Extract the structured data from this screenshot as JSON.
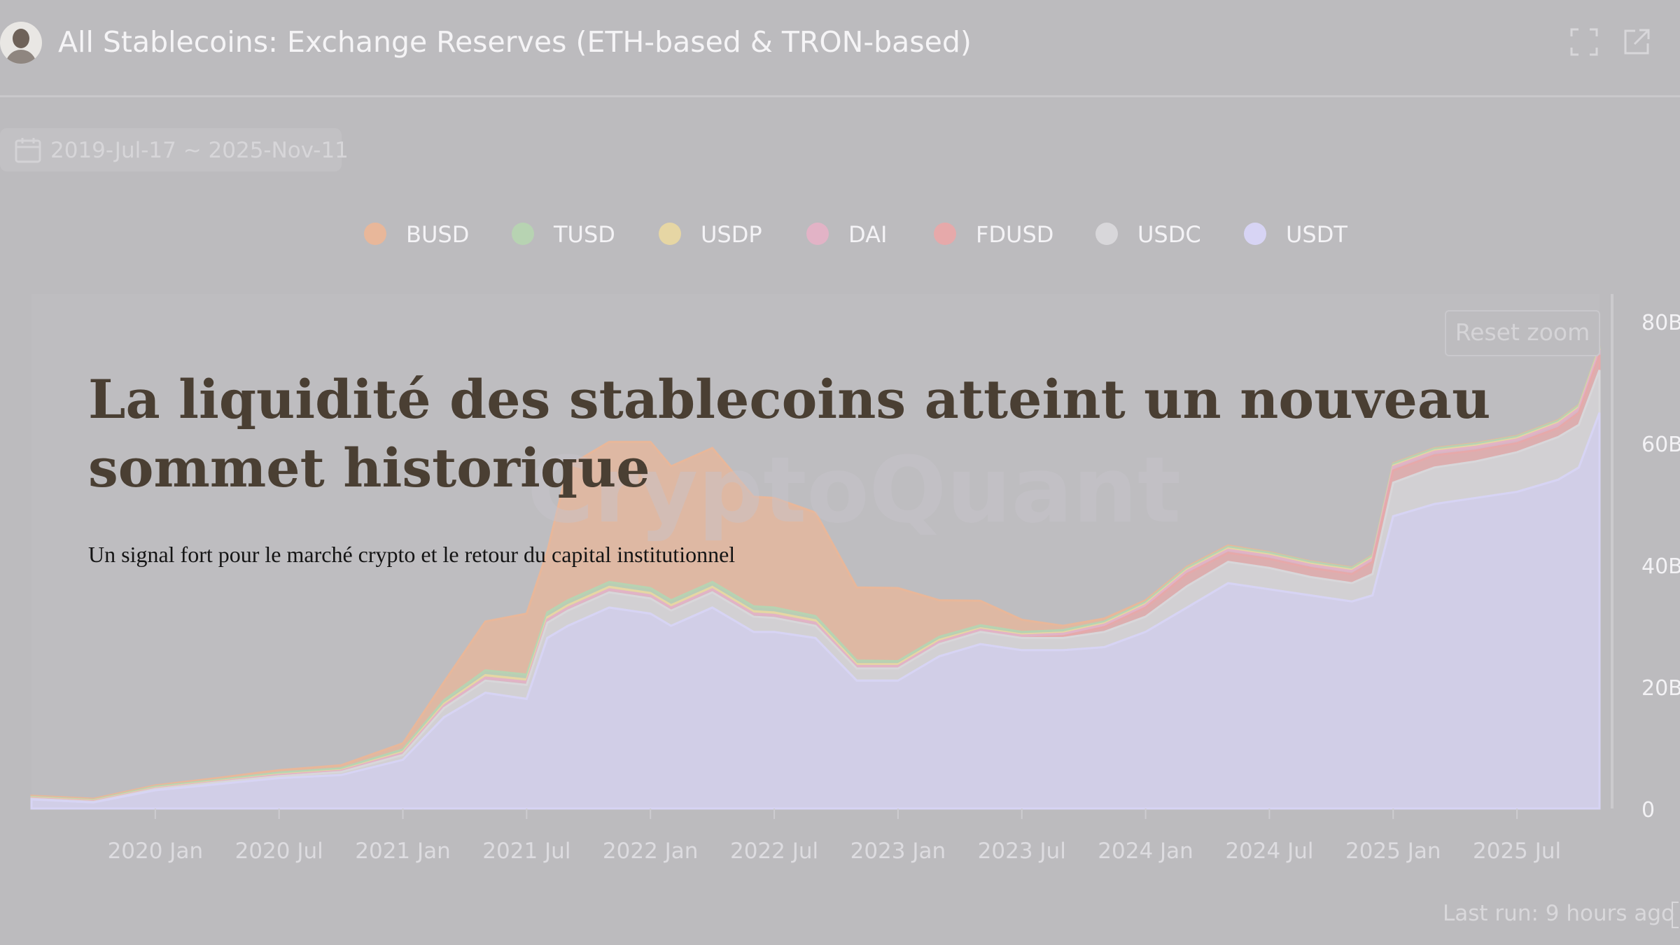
{
  "header": {
    "title": "All Stablecoins: Exchange Reserves (ETH-based & TRON-based)",
    "icons": [
      "avatar",
      "fullscreen-icon",
      "external-link-icon"
    ]
  },
  "date_range": {
    "label": "2019-Jul-17 ~ 2025-Nov-11",
    "icon": "calendar-icon"
  },
  "legend": [
    {
      "label": "BUSD",
      "color": "#e8b79a"
    },
    {
      "label": "TUSD",
      "color": "#b7d3b2"
    },
    {
      "label": "USDP",
      "color": "#e6d6a4"
    },
    {
      "label": "DAI",
      "color": "#e2b3c6"
    },
    {
      "label": "FDUSD",
      "color": "#e6a9aa"
    },
    {
      "label": "USDC",
      "color": "#d8d7da"
    },
    {
      "label": "USDT",
      "color": "#d7d4f4"
    }
  ],
  "reset_zoom": "Reset zoom",
  "watermark": "CryptoQuant",
  "overlay": {
    "headline": "La liquidité des stablecoins atteint un nouveau sommet historique",
    "subheadline": "Un signal fort pour le marché crypto et le retour du capital institutionnel"
  },
  "footer": {
    "last_run": "Last run: 9 hours ago"
  },
  "chart_data": {
    "type": "area",
    "stacked": true,
    "x_unit": "months since 2019-Jul",
    "x_range": [
      "2019-Jul-17",
      "2025-Nov-11"
    ],
    "x_ticks": [
      "2020 Jan",
      "2020 Jul",
      "2021 Jan",
      "2021 Jul",
      "2022 Jan",
      "2022 Jul",
      "2023 Jan",
      "2023 Jul",
      "2024 Jan",
      "2024 Jul",
      "2025 Jan",
      "2025 Jul"
    ],
    "y_ticks": [
      "0",
      "20B",
      "40B",
      "60B",
      "80B"
    ],
    "ylim": [
      0,
      80000000000
    ],
    "y_axis_position": "right",
    "legend_position": "top-center",
    "dates": [
      "2019-Jul",
      "2019-Oct",
      "2020-Jan",
      "2020-Apr",
      "2020-Jul",
      "2020-Oct",
      "2021-Jan",
      "2021-Mar",
      "2021-May",
      "2021-Jul",
      "2021-Aug",
      "2021-Sep",
      "2021-Nov",
      "2022-Jan",
      "2022-Feb",
      "2022-Apr",
      "2022-Jun",
      "2022-Jul",
      "2022-Sep",
      "2022-Nov",
      "2023-Jan",
      "2023-Mar",
      "2023-May",
      "2023-Jul",
      "2023-Sep",
      "2023-Nov",
      "2024-Jan",
      "2024-Mar",
      "2024-May",
      "2024-Jul",
      "2024-Sep",
      "2024-Nov",
      "2024-Dec",
      "2025-Jan",
      "2025-Mar",
      "2025-May",
      "2025-Jul",
      "2025-Sep",
      "2025-Oct",
      "2025-Nov"
    ],
    "x": [
      0,
      3,
      6,
      9,
      12,
      15,
      18,
      20,
      22,
      24,
      25,
      26,
      28,
      30,
      31,
      33,
      35,
      36,
      38,
      40,
      42,
      44,
      46,
      48,
      50,
      52,
      54,
      56,
      58,
      60,
      62,
      64,
      65,
      66,
      68,
      70,
      72,
      74,
      75,
      76
    ],
    "series": [
      {
        "name": "USDT",
        "values": [
          1.5,
          1.0,
          3.0,
          4.0,
          5.0,
          5.5,
          8.0,
          15.0,
          19.0,
          18.0,
          28.0,
          30.0,
          33.0,
          32.0,
          30.0,
          33.0,
          29.0,
          29.0,
          28.0,
          21.0,
          21.0,
          25.0,
          27.0,
          26.0,
          26.0,
          26.5,
          29.0,
          33.0,
          37.0,
          36.0,
          35.0,
          34.0,
          35.0,
          48.0,
          50.0,
          51.0,
          52.0,
          54.0,
          56.0,
          65.0
        ]
      },
      {
        "name": "USDC",
        "values": [
          0.1,
          0.1,
          0.2,
          0.3,
          0.3,
          0.5,
          0.8,
          1.5,
          2.0,
          2.3,
          2.5,
          2.5,
          2.5,
          2.5,
          2.5,
          2.5,
          2.5,
          2.3,
          2.0,
          2.0,
          2.0,
          2.0,
          2.0,
          2.0,
          2.0,
          2.5,
          2.5,
          3.5,
          3.5,
          3.5,
          3.0,
          3.0,
          3.5,
          5.5,
          6.0,
          6.0,
          6.5,
          7.0,
          7.0,
          7.0
        ]
      },
      {
        "name": "FDUSD",
        "values": [
          0,
          0,
          0,
          0,
          0,
          0,
          0,
          0,
          0,
          0,
          0,
          0,
          0,
          0,
          0,
          0,
          0,
          0,
          0,
          0,
          0,
          0,
          0,
          0,
          0.3,
          0.8,
          1.5,
          2.0,
          1.5,
          1.5,
          1.5,
          1.5,
          2.0,
          2.0,
          2.0,
          1.8,
          1.5,
          1.5,
          2.0,
          2.5
        ]
      },
      {
        "name": "DAI",
        "values": [
          0.1,
          0.1,
          0.1,
          0.1,
          0.2,
          0.2,
          0.3,
          0.4,
          0.5,
          0.5,
          0.5,
          0.5,
          0.5,
          0.5,
          0.5,
          0.5,
          0.5,
          0.5,
          0.5,
          0.4,
          0.4,
          0.4,
          0.4,
          0.4,
          0.4,
          0.4,
          0.4,
          0.5,
          0.5,
          0.5,
          0.5,
          0.5,
          0.5,
          0.6,
          0.6,
          0.6,
          0.6,
          0.7,
          0.7,
          0.8
        ]
      },
      {
        "name": "USDP",
        "values": [
          0.1,
          0.1,
          0.1,
          0.1,
          0.1,
          0.1,
          0.2,
          0.3,
          0.4,
          0.4,
          0.4,
          0.4,
          0.4,
          0.4,
          0.4,
          0.4,
          0.4,
          0.4,
          0.4,
          0.3,
          0.3,
          0.3,
          0.2,
          0.2,
          0.2,
          0.2,
          0.2,
          0.2,
          0.2,
          0.2,
          0.2,
          0.2,
          0.2,
          0.2,
          0.2,
          0.2,
          0.2,
          0.2,
          0.2,
          0.2
        ]
      },
      {
        "name": "TUSD",
        "values": [
          0.1,
          0.1,
          0.2,
          0.2,
          0.3,
          0.3,
          0.4,
          0.6,
          0.8,
          0.8,
          0.8,
          0.8,
          0.8,
          0.8,
          0.8,
          0.8,
          0.8,
          0.8,
          0.7,
          0.6,
          0.5,
          0.5,
          0.5,
          0.4,
          0.4,
          0.3,
          0.3,
          0.3,
          0.3,
          0.3,
          0.3,
          0.3,
          0.3,
          0.3,
          0.3,
          0.3,
          0.3,
          0.3,
          0.3,
          0.3
        ]
      },
      {
        "name": "BUSD",
        "values": [
          0.2,
          0.2,
          0.2,
          0.3,
          0.4,
          0.5,
          1.0,
          3.0,
          8.0,
          10.0,
          10.0,
          22.0,
          23.0,
          24.0,
          22.0,
          22.0,
          18.0,
          18.0,
          17.0,
          12.0,
          12.0,
          6.0,
          4.0,
          2.0,
          0.7,
          0.5,
          0.3,
          0.2,
          0.2,
          0.1,
          0.1,
          0.1,
          0.1,
          0.1,
          0.1,
          0.1,
          0.1,
          0.1,
          0.1,
          0.1
        ]
      }
    ],
    "value_scale": 1000000000
  }
}
